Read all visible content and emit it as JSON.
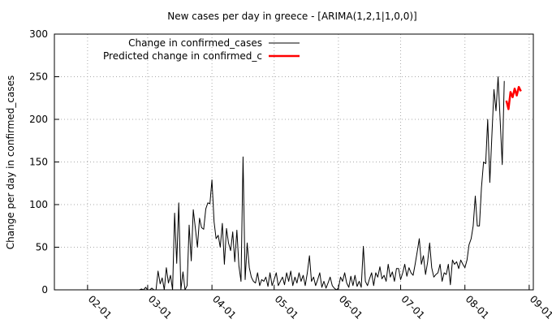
{
  "chart_data": {
    "type": "line",
    "title": "New cases per day in greece -  [ARIMA(1,2,1|1,0,0)]",
    "ylabel": "Change per day in confirmed_cases",
    "xlim": [
      "01-16",
      "09-03"
    ],
    "xticks": [
      "02-01",
      "03-01",
      "04-01",
      "05-01",
      "06-01",
      "07-01",
      "08-01",
      "09-01"
    ],
    "ylim": [
      0,
      300
    ],
    "yticks": [
      0,
      50,
      100,
      150,
      200,
      250,
      300
    ],
    "grid": true,
    "legend": "top-left",
    "series": [
      {
        "name": "Change in confirmed_cases",
        "color": "#000000",
        "x": [
          "02-26",
          "02-27",
          "02-28",
          "02-29",
          "03-01",
          "03-02",
          "03-03",
          "03-04",
          "03-05",
          "03-06",
          "03-07",
          "03-08",
          "03-09",
          "03-10",
          "03-11",
          "03-12",
          "03-13",
          "03-14",
          "03-15",
          "03-16",
          "03-17",
          "03-18",
          "03-19",
          "03-20",
          "03-21",
          "03-22",
          "03-23",
          "03-24",
          "03-25",
          "03-26",
          "03-27",
          "03-28",
          "03-29",
          "03-30",
          "03-31",
          "04-01",
          "04-02",
          "04-03",
          "04-04",
          "04-05",
          "04-06",
          "04-07",
          "04-08",
          "04-09",
          "04-10",
          "04-11",
          "04-12",
          "04-13",
          "04-14",
          "04-15",
          "04-16",
          "04-17",
          "04-18",
          "04-19",
          "04-20",
          "04-21",
          "04-22",
          "04-23",
          "04-24",
          "04-25",
          "04-26",
          "04-27",
          "04-28",
          "04-29",
          "04-30",
          "05-01",
          "05-02",
          "05-03",
          "05-04",
          "05-05",
          "05-06",
          "05-07",
          "05-08",
          "05-09",
          "05-10",
          "05-11",
          "05-12",
          "05-13",
          "05-14",
          "05-15",
          "05-16",
          "05-17",
          "05-18",
          "05-19",
          "05-20",
          "05-21",
          "05-22",
          "05-23",
          "05-24",
          "05-25",
          "05-26",
          "05-27",
          "05-28",
          "05-29",
          "05-30",
          "05-31",
          "06-01",
          "06-02",
          "06-03",
          "06-04",
          "06-05",
          "06-06",
          "06-07",
          "06-08",
          "06-09",
          "06-10",
          "06-11",
          "06-12",
          "06-13",
          "06-14",
          "06-15",
          "06-16",
          "06-17",
          "06-18",
          "06-19",
          "06-20",
          "06-21",
          "06-22",
          "06-23",
          "06-24",
          "06-25",
          "06-26",
          "06-27",
          "06-28",
          "06-29",
          "06-30",
          "07-01",
          "07-02",
          "07-03",
          "07-04",
          "07-05",
          "07-06",
          "07-07",
          "07-08",
          "07-09",
          "07-10",
          "07-11",
          "07-12",
          "07-13",
          "07-14",
          "07-15",
          "07-16",
          "07-17",
          "07-18",
          "07-19",
          "07-20",
          "07-21",
          "07-22",
          "07-23",
          "07-24",
          "07-25",
          "07-26",
          "07-27",
          "07-28",
          "07-29",
          "07-30",
          "07-31",
          "08-01",
          "08-02",
          "08-03",
          "08-04",
          "08-05",
          "08-06",
          "08-07",
          "08-08",
          "08-09",
          "08-10",
          "08-11",
          "08-12",
          "08-13",
          "08-14",
          "08-15",
          "08-16",
          "08-17",
          "08-18",
          "08-19",
          "08-20"
        ],
        "values": [
          0,
          1,
          0,
          3,
          0,
          0,
          2,
          0,
          0,
          22,
          7,
          14,
          0,
          26,
          8,
          17,
          0,
          90,
          31,
          102,
          0,
          21,
          0,
          5,
          76,
          34,
          94,
          72,
          50,
          84,
          73,
          71,
          95,
          102,
          101,
          129,
          80,
          60,
          64,
          50,
          78,
          30,
          72,
          55,
          46,
          68,
          33,
          70,
          28,
          10,
          156,
          12,
          55,
          26,
          15,
          10,
          8,
          20,
          5,
          12,
          10,
          15,
          4,
          20,
          5,
          12,
          20,
          5,
          10,
          15,
          6,
          20,
          10,
          22,
          5,
          15,
          8,
          20,
          10,
          17,
          5,
          20,
          40,
          10,
          15,
          5,
          12,
          20,
          3,
          10,
          2,
          8,
          15,
          5,
          2,
          0,
          2,
          15,
          10,
          20,
          8,
          3,
          16,
          5,
          17,
          4,
          10,
          3,
          51,
          10,
          5,
          13,
          20,
          5,
          20,
          15,
          27,
          13,
          17,
          10,
          30,
          15,
          21,
          10,
          25,
          25,
          12,
          20,
          30,
          16,
          26,
          20,
          17,
          30,
          45,
          60,
          30,
          40,
          18,
          32,
          55,
          26,
          15,
          18,
          20,
          30,
          10,
          20,
          18,
          30,
          6,
          35,
          30,
          33,
          25,
          35,
          30,
          26,
          35,
          53,
          60,
          75,
          110,
          75,
          75,
          120,
          150,
          148,
          200,
          126,
          180,
          235,
          210,
          250,
          200,
          147,
          245
        ]
      },
      {
        "name": "Predicted change in confirmed_c",
        "color": "#ff0000",
        "x": [
          "08-21",
          "08-22",
          "08-23",
          "08-24",
          "08-25",
          "08-26",
          "08-27",
          "08-28"
        ],
        "values": [
          222,
          212,
          232,
          226,
          236,
          228,
          238,
          233
        ]
      }
    ]
  }
}
